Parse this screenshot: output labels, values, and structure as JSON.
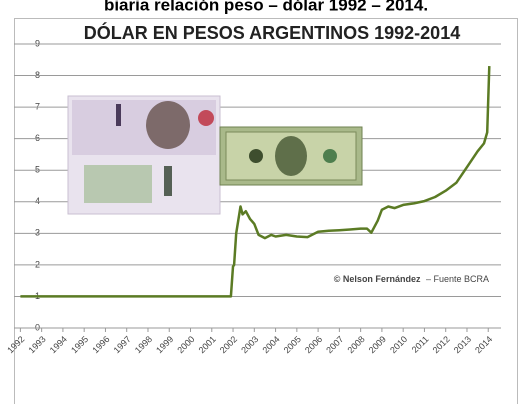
{
  "heading": "biaria relación peso – dólar 1992 – 2014.",
  "chart_data": {
    "type": "line",
    "title": "DÓLAR EN PESOS ARGENTINOS 1992-2014",
    "credit": "© Nelson Fernández",
    "source": "– Fuente BCRA",
    "color": "#5b7b24",
    "grid": true,
    "x": [
      1992,
      1995,
      1998,
      2001.9,
      2002.0,
      2002.05,
      2002.15,
      2002.35,
      2002.45,
      2002.6,
      2002.8,
      2003.0,
      2003.2,
      2003.5,
      2003.8,
      2004.0,
      2004.5,
      2005.0,
      2005.5,
      2006.0,
      2006.5,
      2007.0,
      2007.5,
      2008.0,
      2008.3,
      2008.5,
      2008.8,
      2009.0,
      2009.3,
      2009.6,
      2010.0,
      2010.5,
      2011.0,
      2011.5,
      2012.0,
      2012.5,
      2013.0,
      2013.5,
      2013.8,
      2013.95,
      2014.05
    ],
    "values": [
      1,
      1,
      1,
      1,
      1.95,
      2.0,
      3.0,
      3.85,
      3.6,
      3.7,
      3.45,
      3.3,
      2.95,
      2.85,
      2.95,
      2.9,
      2.95,
      2.9,
      2.88,
      3.05,
      3.08,
      3.1,
      3.12,
      3.15,
      3.15,
      3.02,
      3.4,
      3.75,
      3.85,
      3.8,
      3.9,
      3.95,
      4.02,
      4.15,
      4.35,
      4.6,
      5.1,
      5.6,
      5.85,
      6.2,
      8.3
    ],
    "xlim": [
      1991.7,
      2014.6
    ],
    "xticks": [
      1992,
      1993,
      1994,
      1995,
      1996,
      1997,
      1998,
      1999,
      2000,
      2001,
      2002,
      2003,
      2004,
      2005,
      2006,
      2007,
      2008,
      2009,
      2010,
      2011,
      2012,
      2013,
      2014
    ],
    "ylim": [
      0,
      9
    ],
    "yticks": [
      0,
      1,
      2,
      3,
      4,
      5,
      6,
      7,
      8,
      9
    ]
  }
}
